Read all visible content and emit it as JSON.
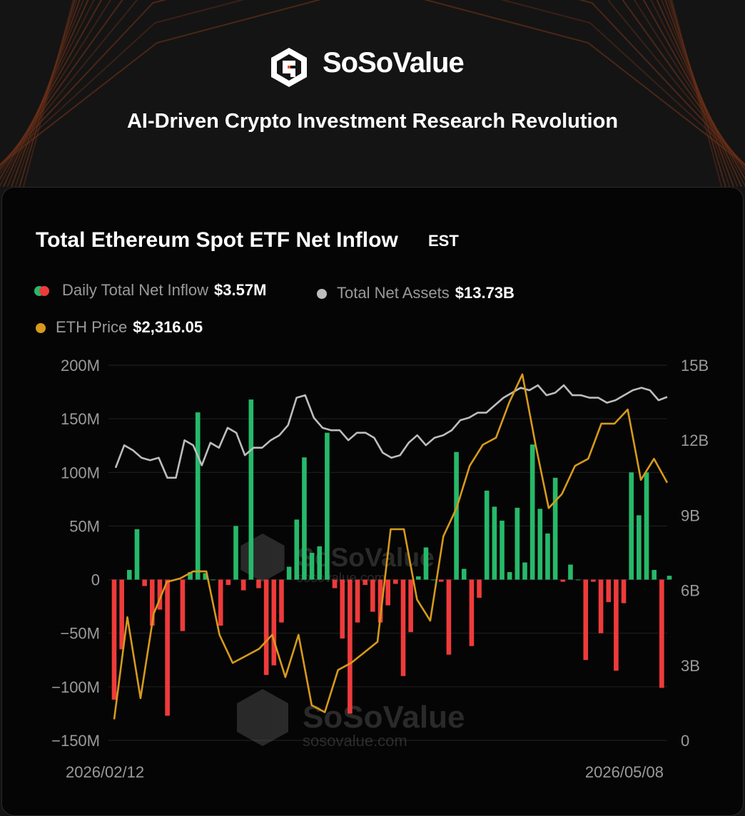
{
  "brand": {
    "name": "SoSoValue",
    "tagline": "AI-Driven Crypto Investment Research Revolution",
    "watermark_name": "SoSoValue",
    "watermark_url": "sosovalue.com",
    "logo_icon": "sosovalue-logo-icon"
  },
  "colors": {
    "background": "#141414",
    "card": "#050505",
    "inflow_positive": "#26b96a",
    "inflow_negative": "#ee3b3b",
    "net_assets": "#bdbdbd",
    "eth_price": "#d69a1c",
    "accent": "#e85d22"
  },
  "chart_data": {
    "type": "bar",
    "title": "Total Ethereum Spot ETF Net Inflow",
    "timezone": "EST",
    "legend": [
      {
        "name": "Daily Total Net Inflow",
        "value": "$3.57M"
      },
      {
        "name": "Total Net Assets",
        "value": "$13.73B"
      },
      {
        "name": "ETH Price",
        "value": "$2,316.05"
      }
    ],
    "x_start_label": "2026/02/12",
    "x_end_label": "2026/05/08",
    "y_left": {
      "ticks": [
        "200M",
        "150M",
        "100M",
        "50M",
        "0",
        "−50M",
        "−100M",
        "−150M"
      ],
      "range_millions": [
        -150,
        200
      ]
    },
    "y_right": {
      "ticks": [
        "15B",
        "12B",
        "9B",
        "6B",
        "3B",
        "0"
      ],
      "range_billions": [
        0,
        15
      ]
    },
    "grid": true,
    "series": [
      {
        "name": "Daily Total Net Inflow",
        "type": "bar",
        "unit": "M USD",
        "values": [
          -112,
          -65,
          9,
          47,
          -6,
          -43,
          -28,
          -127,
          0,
          -48,
          7,
          156,
          6,
          0,
          -43,
          -5,
          50,
          -10,
          168,
          -8,
          -89,
          -80,
          -40,
          12,
          56,
          114,
          25,
          31,
          137,
          -8,
          -55,
          -125,
          -40,
          -5,
          -30,
          -40,
          -24,
          -4,
          -90,
          -49,
          3,
          30,
          0,
          -2,
          -70,
          119,
          10,
          -62,
          -17,
          83,
          68,
          55,
          7,
          67,
          16,
          126,
          66,
          43,
          95,
          -2,
          14,
          0,
          -75,
          -2,
          -50,
          -21,
          -85,
          -22,
          100,
          60,
          100,
          9,
          -101,
          3.57
        ]
      },
      {
        "name": "Total Net Assets",
        "type": "line",
        "unit": "B USD",
        "values": [
          10.9,
          11.8,
          11.6,
          11.3,
          11.2,
          11.3,
          10.5,
          10.5,
          12.0,
          11.8,
          11.0,
          11.9,
          11.7,
          12.5,
          12.3,
          11.4,
          11.7,
          11.7,
          12.0,
          12.2,
          12.6,
          13.7,
          13.8,
          12.9,
          12.5,
          12.4,
          12.4,
          12.0,
          12.3,
          12.3,
          12.1,
          11.5,
          11.3,
          11.4,
          11.9,
          12.2,
          11.8,
          12.1,
          12.2,
          12.4,
          12.8,
          12.9,
          13.1,
          13.1,
          13.4,
          13.7,
          13.9,
          14.1,
          14.0,
          14.2,
          13.8,
          13.9,
          14.2,
          13.8,
          13.8,
          13.7,
          13.7,
          13.5,
          13.6,
          13.8,
          14.0,
          14.1,
          14.0,
          13.6,
          13.73
        ]
      },
      {
        "name": "ETH Price",
        "type": "line",
        "unit": "USD",
        "values": [
          1980,
          2125,
          2010,
          2130,
          2175,
          2180,
          2190,
          2190,
          2100,
          2060,
          2070,
          2080,
          2100,
          2040,
          2100,
          2000,
          1990,
          2050,
          2060,
          2075,
          2090,
          2250,
          2250,
          2150,
          2120,
          2240,
          2280,
          2340,
          2370,
          2380,
          2430,
          2470,
          2370,
          2280,
          2300,
          2340,
          2350,
          2400,
          2400,
          2420,
          2320,
          2350,
          2316.05
        ]
      }
    ]
  }
}
